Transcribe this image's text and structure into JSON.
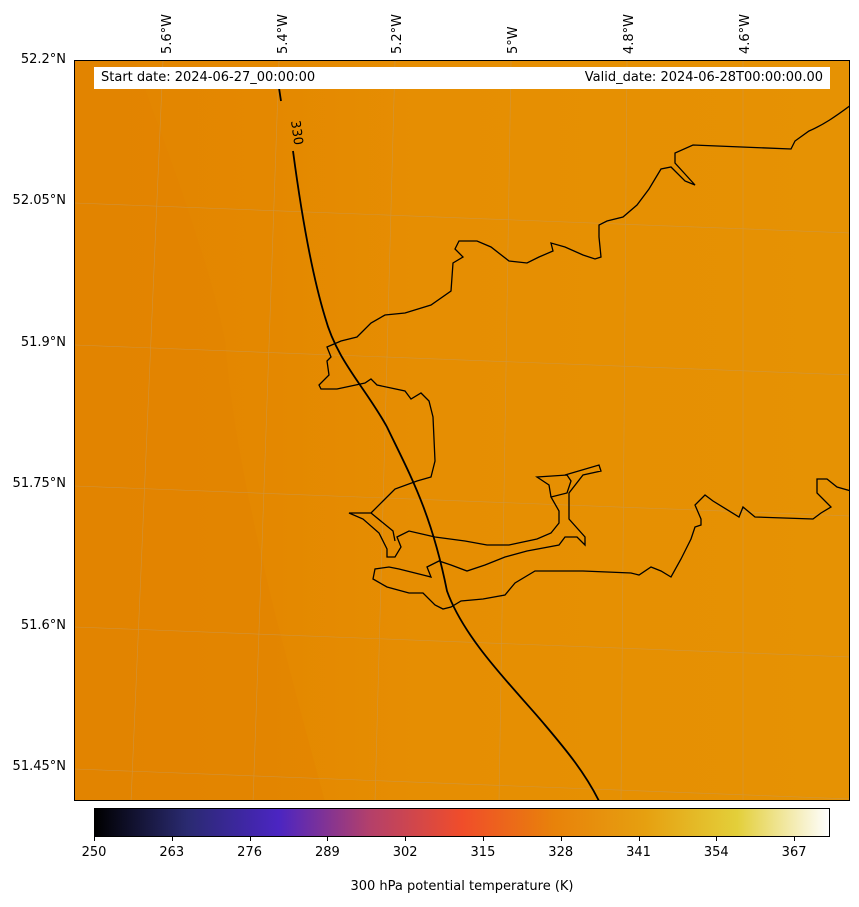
{
  "header": {
    "start_date": "Start date: 2024-06-27_00:00:00",
    "valid_date": "Valid_date: 2024-06-28T00:00:00.00"
  },
  "axes": {
    "lon_labels": [
      "5.6°W",
      "5.4°W",
      "5.2°W",
      "5°W",
      "4.8°W",
      "4.6°W"
    ],
    "lat_labels": [
      "52.2°N",
      "52.05°N",
      "51.9°N",
      "51.75°N",
      "51.6°N",
      "51.45°N"
    ]
  },
  "contour": {
    "label": "330",
    "level": 330
  },
  "colorbar": {
    "label": "300 hPa potential temperature (K)",
    "ticks": [
      "250",
      "263",
      "276",
      "289",
      "302",
      "315",
      "328",
      "341",
      "354",
      "367"
    ],
    "range": [
      250,
      373
    ],
    "colors": [
      "#000000",
      "#2a2a70",
      "#4b25c2",
      "#b4406a",
      "#f04d2a",
      "#e8820a",
      "#e6a010",
      "#e3cf3a",
      "#fefefe"
    ]
  },
  "field": {
    "west_color": "#e48600",
    "east_color": "#e69002",
    "grid_color": "#c8a060"
  }
}
